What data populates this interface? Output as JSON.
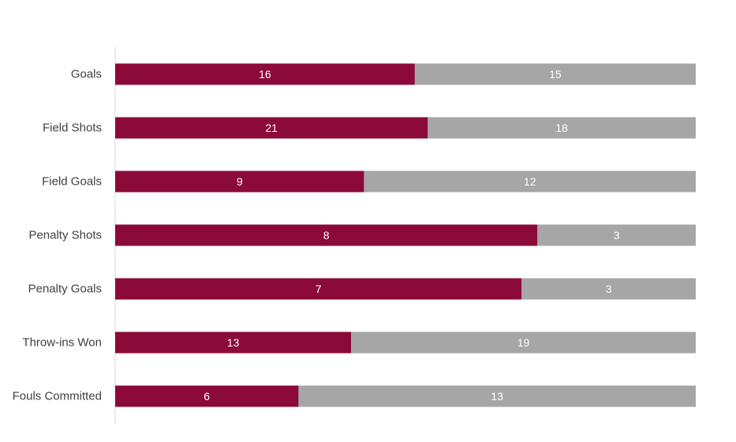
{
  "chart_data": {
    "type": "bar",
    "orientation": "horizontal",
    "stacked": "100%",
    "categories": [
      "Goals",
      "Field Shots",
      "Field Goals",
      "Penalty Shots",
      "Penalty Goals",
      "Throw-ins Won",
      "Fouls Committed"
    ],
    "series": [
      {
        "values": [
          16,
          21,
          9,
          8,
          7,
          13,
          6
        ],
        "color": "#8B0A3A"
      },
      {
        "values": [
          15,
          18,
          12,
          3,
          3,
          19,
          13
        ],
        "color": "#A6A6A6"
      }
    ],
    "title": "",
    "xlabel": "",
    "ylabel": "",
    "data_labels": "inside-center",
    "grid": false,
    "legend": "none"
  }
}
